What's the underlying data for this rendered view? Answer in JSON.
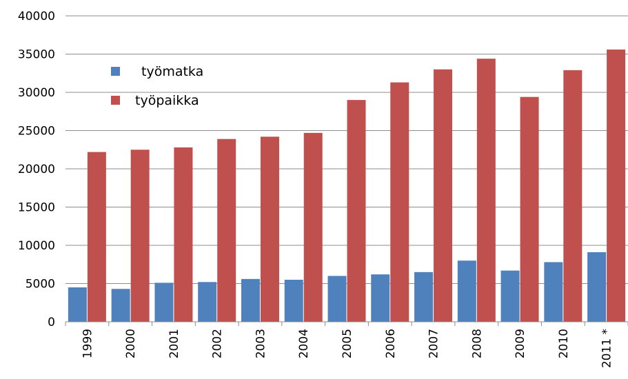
{
  "chart_data": {
    "type": "bar",
    "categories": [
      "1999",
      "2000",
      "2001",
      "2002",
      "2003",
      "2004",
      "2005",
      "2006",
      "2007",
      "2008",
      "2009",
      "2010",
      "2011 *"
    ],
    "series": [
      {
        "name": "työmatka",
        "color": "#4f81bd",
        "values": [
          4500,
          4300,
          5100,
          5200,
          5600,
          5500,
          6000,
          6200,
          6500,
          8000,
          6700,
          7800,
          9100
        ]
      },
      {
        "name": "työpaikka",
        "color": "#c0504d",
        "values": [
          22200,
          22500,
          22800,
          23900,
          24200,
          24700,
          29000,
          31300,
          33000,
          34400,
          29400,
          32900,
          35600
        ]
      }
    ],
    "ylim": [
      0,
      40000
    ],
    "yticks": [
      "0",
      "5000",
      "10000",
      "15000",
      "20000",
      "25000",
      "30000",
      "35000",
      "40000"
    ],
    "grid": true,
    "legend": "top-left",
    "title": "",
    "xlabel": "",
    "ylabel": ""
  }
}
